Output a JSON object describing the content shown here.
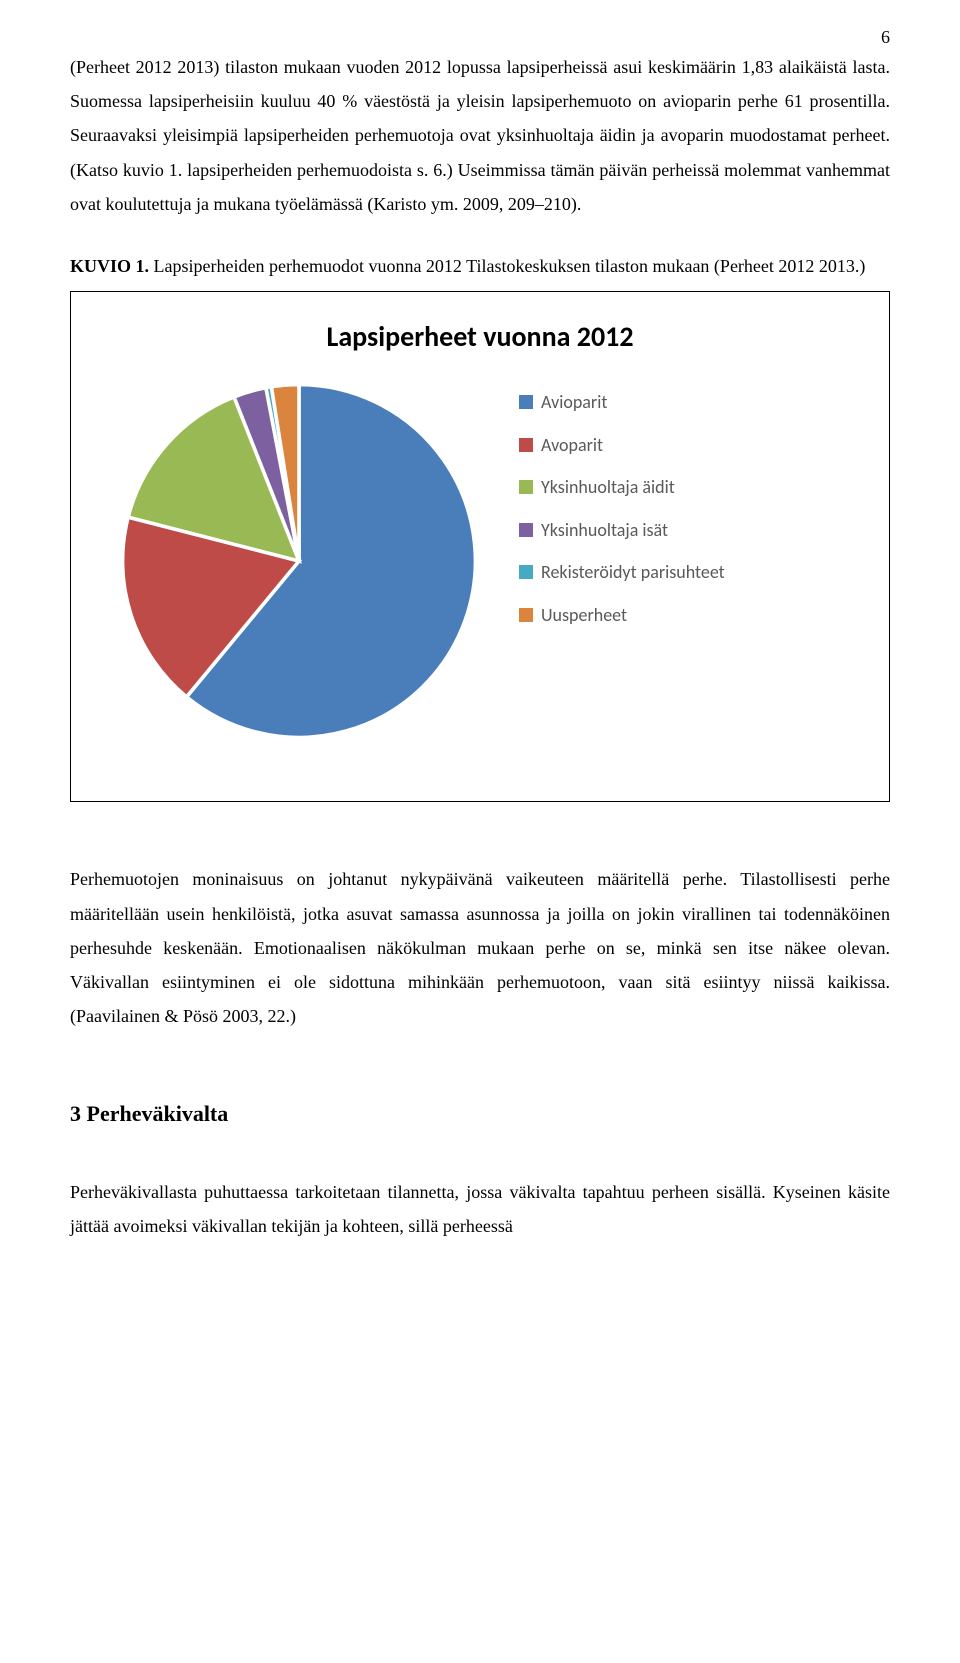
{
  "page_number": "6",
  "paragraph1": "(Perheet 2012 2013) tilaston mukaan vuoden 2012 lopussa lapsiperheissä asui keskimäärin 1,83 alaikäistä lasta. Suomessa lapsiperheisiin kuuluu 40 % väestöstä ja yleisin lapsiperhemuoto on avioparin perhe 61 prosentilla. Seuraavaksi yleisimpiä lapsiperheiden perhemuotoja ovat yksinhuoltaja äidin ja avoparin muodostamat perheet. (Katso kuvio 1. lapsiperheiden perhemuodoista s. 6.) Useimmissa tämän päivän perheissä molemmat vanhemmat ovat koulutettuja ja mukana työelämässä (Karisto ym. 2009, 209–210).",
  "kuvio_label": "KUVIO 1.",
  "kuvio_caption": " Lapsiperheiden perhemuodot vuonna 2012 Tilastokeskuksen tilaston mukaan (Perheet 2012 2013.)",
  "chart": {
    "type": "pie",
    "title": "Lapsiperheet vuonna 2012",
    "title_fontsize": 28,
    "background_color": "#ffffff",
    "border_color": "#000000",
    "legend_font_family": "Calibri",
    "legend_font_size": 18,
    "legend_color": "#595959",
    "slice_border_color": "#ffffff",
    "slice_border_width": 2,
    "series": [
      {
        "label": "Avioparit",
        "value": 61,
        "color": "#4a7ebb"
      },
      {
        "label": "Avoparit",
        "value": 18,
        "color": "#be4b48"
      },
      {
        "label": "Yksinhuoltaja äidit",
        "value": 15,
        "color": "#98b954"
      },
      {
        "label": "Yksinhuoltaja isät",
        "value": 3,
        "color": "#7d60a0"
      },
      {
        "label": "Rekisteröidyt parisuhteet",
        "value": 0.5,
        "color": "#46aac5"
      },
      {
        "label": "Uusperheet",
        "value": 2.5,
        "color": "#db843d"
      }
    ]
  },
  "paragraph2": "Perhemuotojen moninaisuus on johtanut nykypäivänä vaikeuteen määritellä perhe. Tilastollisesti perhe määritellään usein henkilöistä, jotka asuvat samassa asunnossa ja joilla on jokin virallinen tai todennäköinen perhesuhde keskenään. Emotionaalisen näkökulman mukaan perhe on se, minkä sen itse näkee olevan. Väkivallan esiintyminen ei ole sidottuna mihinkään perhemuotoon, vaan sitä esiintyy niissä kaikissa. (Paavilainen & Pösö 2003, 22.)",
  "section_heading": "3 Perheväkivalta",
  "paragraph3": "Perheväkivallasta puhuttaessa tarkoitetaan tilannetta, jossa väkivalta tapahtuu perheen sisällä. Kyseinen käsite jättää avoimeksi väkivallan tekijän ja kohteen, sillä perheessä"
}
